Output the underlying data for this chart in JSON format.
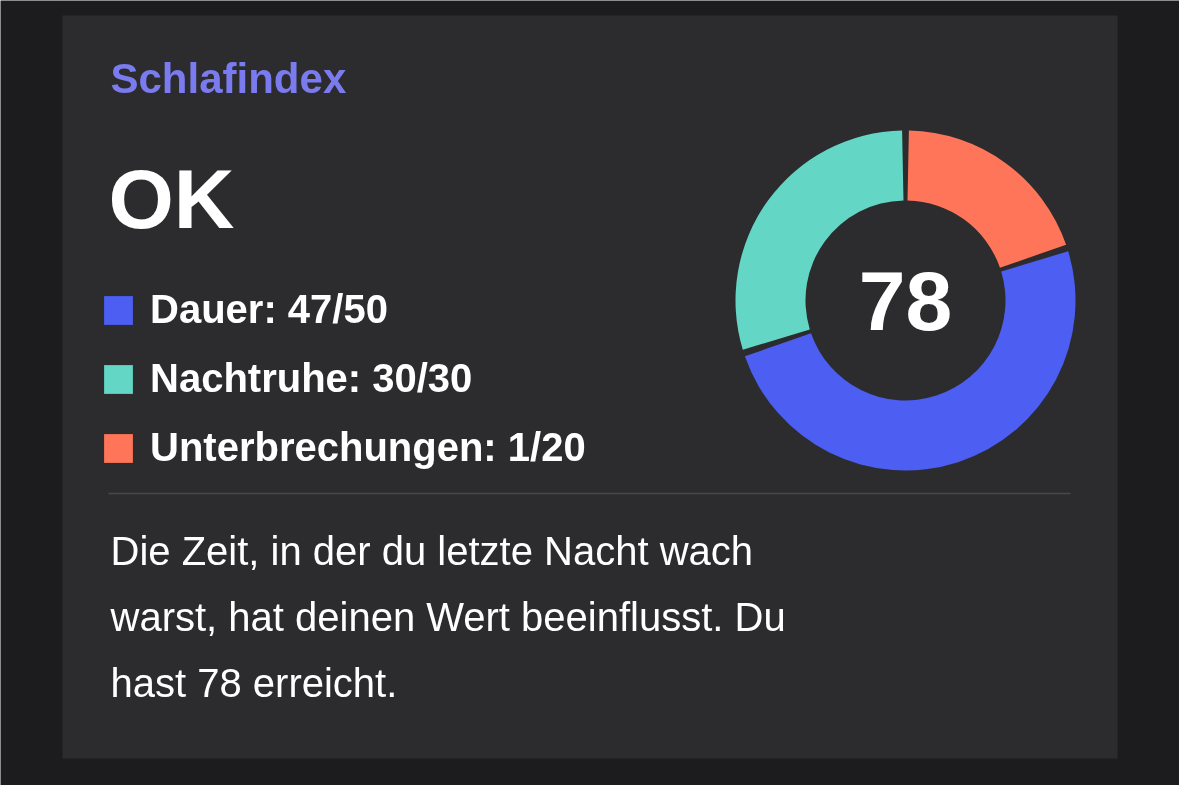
{
  "chart_data": {
    "type": "donut",
    "title": "Schlafindex",
    "subtitle": "OK",
    "categories": [
      "Dauer",
      "Nachtruhe",
      "Unterbrechungen"
    ],
    "values": [
      50,
      30,
      20
    ],
    "colors": [
      "#4c5ff2",
      "#63d6c5",
      "#ff7559"
    ],
    "value_labels": [
      "47/50",
      "30/30",
      "1/20"
    ],
    "legend": "left",
    "annotations": [
      {
        "text": "78"
      },
      "Die Zeit, in der du letzte Nacht wach warst, hat deinen Wert beeinflusst. Du hast 78 erreicht."
    ]
  }
}
